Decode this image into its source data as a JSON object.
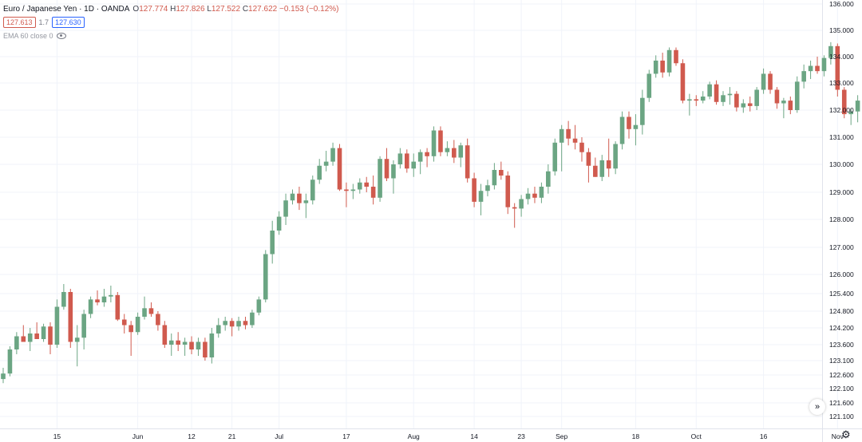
{
  "legend": {
    "symbol_title": "Euro / Japanese Yen · 1D · OANDA",
    "ohlc": [
      {
        "k": "O",
        "v": "127.774"
      },
      {
        "k": "H",
        "v": "127.826"
      },
      {
        "k": "L",
        "v": "127.522"
      },
      {
        "k": "C",
        "v": "127.622"
      }
    ],
    "change": "−0.153 (−0.12%)",
    "bid": "127.613",
    "spread": "1.7",
    "ask": "127.630",
    "indicator": "EMA 60 close 0"
  },
  "colors": {
    "up": "#6ba583",
    "down": "#d05a4e",
    "grid": "#f0f3fa",
    "axis_text": "#131722"
  },
  "icons": [
    "eye-icon",
    "scroll-right-icon",
    "gear-icon"
  ],
  "chart_data": {
    "type": "candlestick",
    "y_axis": {
      "ticks": [
        {
          "label": "136.000",
          "value": 136.0
        },
        {
          "label": "135.000",
          "value": 135.0
        },
        {
          "label": "134.000",
          "value": 134.0
        },
        {
          "label": "133.000",
          "value": 133.0
        },
        {
          "label": "132.000",
          "value": 132.0
        },
        {
          "label": "131.000",
          "value": 131.0
        },
        {
          "label": "130.000",
          "value": 130.0
        },
        {
          "label": "129.000",
          "value": 129.0
        },
        {
          "label": "128.000",
          "value": 128.0
        },
        {
          "label": "127.000",
          "value": 127.0
        },
        {
          "label": "126.000",
          "value": 126.0
        },
        {
          "label": "125.400",
          "value": 125.4
        },
        {
          "label": "124.800",
          "value": 124.8
        },
        {
          "label": "124.200",
          "value": 124.2
        },
        {
          "label": "123.600",
          "value": 123.6
        },
        {
          "label": "123.100",
          "value": 123.1
        },
        {
          "label": "122.600",
          "value": 122.6
        },
        {
          "label": "122.100",
          "value": 122.1
        },
        {
          "label": "121.600",
          "value": 121.6
        },
        {
          "label": "121.100",
          "value": 121.1
        }
      ]
    },
    "x_axis": {
      "ticks": [
        {
          "label": "15",
          "index": 8
        },
        {
          "label": "Jun",
          "index": 20
        },
        {
          "label": "12",
          "index": 28
        },
        {
          "label": "21",
          "index": 34
        },
        {
          "label": "Jul",
          "index": 41
        },
        {
          "label": "17",
          "index": 51
        },
        {
          "label": "Aug",
          "index": 61
        },
        {
          "label": "14",
          "index": 70
        },
        {
          "label": "23",
          "index": 77
        },
        {
          "label": "Sep",
          "index": 83
        },
        {
          "label": "18",
          "index": 94
        },
        {
          "label": "Oct",
          "index": 103
        },
        {
          "label": "16",
          "index": 113
        },
        {
          "label": "Nov",
          "index": 124
        }
      ]
    },
    "grid": true,
    "candles": [
      {
        "o": 122.45,
        "h": 122.85,
        "l": 122.3,
        "c": 122.65
      },
      {
        "o": 122.65,
        "h": 123.55,
        "l": 122.55,
        "c": 123.45
      },
      {
        "o": 123.45,
        "h": 124.05,
        "l": 123.3,
        "c": 123.9
      },
      {
        "o": 123.9,
        "h": 124.3,
        "l": 123.75,
        "c": 123.7
      },
      {
        "o": 123.7,
        "h": 124.2,
        "l": 123.4,
        "c": 124.0
      },
      {
        "o": 124.0,
        "h": 124.4,
        "l": 123.85,
        "c": 123.8
      },
      {
        "o": 123.8,
        "h": 124.35,
        "l": 123.7,
        "c": 124.25
      },
      {
        "o": 124.25,
        "h": 124.4,
        "l": 123.3,
        "c": 123.6
      },
      {
        "o": 123.6,
        "h": 125.2,
        "l": 123.5,
        "c": 124.95
      },
      {
        "o": 124.95,
        "h": 125.7,
        "l": 124.85,
        "c": 125.45
      },
      {
        "o": 125.45,
        "h": 125.55,
        "l": 123.5,
        "c": 123.7
      },
      {
        "o": 123.7,
        "h": 124.3,
        "l": 122.9,
        "c": 123.85
      },
      {
        "o": 123.85,
        "h": 124.85,
        "l": 123.45,
        "c": 124.7
      },
      {
        "o": 124.7,
        "h": 125.3,
        "l": 124.55,
        "c": 125.2
      },
      {
        "o": 125.2,
        "h": 125.5,
        "l": 125.0,
        "c": 125.1
      },
      {
        "o": 125.1,
        "h": 125.55,
        "l": 124.95,
        "c": 125.3
      },
      {
        "o": 125.3,
        "h": 125.65,
        "l": 125.1,
        "c": 125.35
      },
      {
        "o": 125.35,
        "h": 125.45,
        "l": 124.45,
        "c": 124.5
      },
      {
        "o": 124.5,
        "h": 124.7,
        "l": 124.0,
        "c": 124.3
      },
      {
        "o": 124.3,
        "h": 124.45,
        "l": 123.25,
        "c": 124.05
      },
      {
        "o": 124.05,
        "h": 124.75,
        "l": 123.95,
        "c": 124.6
      },
      {
        "o": 124.6,
        "h": 125.3,
        "l": 124.5,
        "c": 124.9
      },
      {
        "o": 124.9,
        "h": 125.1,
        "l": 124.6,
        "c": 124.7
      },
      {
        "o": 124.7,
        "h": 124.8,
        "l": 124.1,
        "c": 124.3
      },
      {
        "o": 124.3,
        "h": 124.45,
        "l": 123.5,
        "c": 123.6
      },
      {
        "o": 123.6,
        "h": 124.0,
        "l": 123.25,
        "c": 123.75
      },
      {
        "o": 123.75,
        "h": 124.05,
        "l": 123.4,
        "c": 123.6
      },
      {
        "o": 123.6,
        "h": 123.85,
        "l": 123.25,
        "c": 123.7
      },
      {
        "o": 123.7,
        "h": 123.9,
        "l": 123.3,
        "c": 123.45
      },
      {
        "o": 123.45,
        "h": 123.85,
        "l": 123.25,
        "c": 123.7
      },
      {
        "o": 123.7,
        "h": 123.85,
        "l": 123.1,
        "c": 123.2
      },
      {
        "o": 123.2,
        "h": 124.2,
        "l": 123.0,
        "c": 124.0
      },
      {
        "o": 124.0,
        "h": 124.55,
        "l": 123.85,
        "c": 124.3
      },
      {
        "o": 124.3,
        "h": 124.6,
        "l": 124.1,
        "c": 124.45
      },
      {
        "o": 124.45,
        "h": 124.55,
        "l": 123.9,
        "c": 124.25
      },
      {
        "o": 124.25,
        "h": 124.6,
        "l": 124.1,
        "c": 124.45
      },
      {
        "o": 124.45,
        "h": 124.6,
        "l": 124.15,
        "c": 124.3
      },
      {
        "o": 124.3,
        "h": 124.85,
        "l": 124.2,
        "c": 124.75
      },
      {
        "o": 124.75,
        "h": 125.3,
        "l": 124.65,
        "c": 125.2
      },
      {
        "o": 125.2,
        "h": 126.9,
        "l": 125.1,
        "c": 126.75
      },
      {
        "o": 126.75,
        "h": 127.95,
        "l": 126.4,
        "c": 127.6
      },
      {
        "o": 127.6,
        "h": 128.3,
        "l": 127.45,
        "c": 128.1
      },
      {
        "o": 128.1,
        "h": 128.95,
        "l": 127.8,
        "c": 128.7
      },
      {
        "o": 128.7,
        "h": 129.1,
        "l": 128.55,
        "c": 128.95
      },
      {
        "o": 128.95,
        "h": 129.2,
        "l": 128.35,
        "c": 128.6
      },
      {
        "o": 128.6,
        "h": 128.95,
        "l": 128.05,
        "c": 128.7
      },
      {
        "o": 128.7,
        "h": 129.6,
        "l": 128.55,
        "c": 129.45
      },
      {
        "o": 129.45,
        "h": 130.2,
        "l": 129.3,
        "c": 129.95
      },
      {
        "o": 129.95,
        "h": 130.5,
        "l": 129.75,
        "c": 130.1
      },
      {
        "o": 130.1,
        "h": 130.8,
        "l": 129.95,
        "c": 130.6
      },
      {
        "o": 130.6,
        "h": 130.75,
        "l": 129.05,
        "c": 129.1
      },
      {
        "o": 129.1,
        "h": 129.35,
        "l": 128.45,
        "c": 129.05
      },
      {
        "o": 129.05,
        "h": 129.3,
        "l": 128.75,
        "c": 129.1
      },
      {
        "o": 129.1,
        "h": 129.5,
        "l": 128.95,
        "c": 129.35
      },
      {
        "o": 129.35,
        "h": 129.55,
        "l": 129.0,
        "c": 129.2
      },
      {
        "o": 129.2,
        "h": 129.6,
        "l": 128.55,
        "c": 128.8
      },
      {
        "o": 128.8,
        "h": 130.3,
        "l": 128.65,
        "c": 130.2
      },
      {
        "o": 130.2,
        "h": 130.6,
        "l": 129.4,
        "c": 129.5
      },
      {
        "o": 129.5,
        "h": 130.15,
        "l": 128.95,
        "c": 130.0
      },
      {
        "o": 130.0,
        "h": 130.6,
        "l": 129.85,
        "c": 130.4
      },
      {
        "o": 130.4,
        "h": 130.55,
        "l": 129.7,
        "c": 129.85
      },
      {
        "o": 129.85,
        "h": 130.4,
        "l": 129.55,
        "c": 130.1
      },
      {
        "o": 130.1,
        "h": 130.55,
        "l": 129.65,
        "c": 130.45
      },
      {
        "o": 130.45,
        "h": 130.6,
        "l": 129.9,
        "c": 130.3
      },
      {
        "o": 130.3,
        "h": 131.4,
        "l": 130.1,
        "c": 131.25
      },
      {
        "o": 131.25,
        "h": 131.4,
        "l": 130.3,
        "c": 130.45
      },
      {
        "o": 130.45,
        "h": 130.85,
        "l": 130.3,
        "c": 130.6
      },
      {
        "o": 130.6,
        "h": 130.9,
        "l": 130.05,
        "c": 130.25
      },
      {
        "o": 130.25,
        "h": 130.8,
        "l": 129.9,
        "c": 130.7
      },
      {
        "o": 130.7,
        "h": 130.95,
        "l": 129.35,
        "c": 129.5
      },
      {
        "o": 129.5,
        "h": 129.7,
        "l": 128.45,
        "c": 128.65
      },
      {
        "o": 128.65,
        "h": 129.3,
        "l": 128.15,
        "c": 129.05
      },
      {
        "o": 129.05,
        "h": 129.45,
        "l": 128.85,
        "c": 129.25
      },
      {
        "o": 129.25,
        "h": 130.05,
        "l": 129.1,
        "c": 129.8
      },
      {
        "o": 129.8,
        "h": 130.1,
        "l": 129.45,
        "c": 129.6
      },
      {
        "o": 129.6,
        "h": 129.75,
        "l": 128.2,
        "c": 128.45
      },
      {
        "o": 128.45,
        "h": 128.6,
        "l": 127.7,
        "c": 128.4
      },
      {
        "o": 128.4,
        "h": 128.9,
        "l": 128.1,
        "c": 128.75
      },
      {
        "o": 128.75,
        "h": 129.15,
        "l": 128.55,
        "c": 128.95
      },
      {
        "o": 128.95,
        "h": 129.2,
        "l": 128.6,
        "c": 128.8
      },
      {
        "o": 128.8,
        "h": 129.35,
        "l": 128.6,
        "c": 129.2
      },
      {
        "o": 129.2,
        "h": 130.0,
        "l": 128.95,
        "c": 129.75
      },
      {
        "o": 129.75,
        "h": 130.95,
        "l": 129.6,
        "c": 130.8
      },
      {
        "o": 130.8,
        "h": 131.45,
        "l": 129.75,
        "c": 131.3
      },
      {
        "o": 131.3,
        "h": 131.6,
        "l": 130.7,
        "c": 130.95
      },
      {
        "o": 130.95,
        "h": 131.45,
        "l": 130.55,
        "c": 130.8
      },
      {
        "o": 130.8,
        "h": 131.0,
        "l": 130.1,
        "c": 130.45
      },
      {
        "o": 130.45,
        "h": 130.6,
        "l": 129.35,
        "c": 129.95
      },
      {
        "o": 129.95,
        "h": 130.25,
        "l": 129.55,
        "c": 129.55
      },
      {
        "o": 129.55,
        "h": 130.35,
        "l": 129.4,
        "c": 130.15
      },
      {
        "o": 130.15,
        "h": 130.95,
        "l": 129.55,
        "c": 129.85
      },
      {
        "o": 129.85,
        "h": 130.85,
        "l": 129.65,
        "c": 130.75
      },
      {
        "o": 130.75,
        "h": 131.95,
        "l": 130.55,
        "c": 131.75
      },
      {
        "o": 131.75,
        "h": 131.95,
        "l": 130.95,
        "c": 131.3
      },
      {
        "o": 131.3,
        "h": 131.85,
        "l": 130.7,
        "c": 131.45
      },
      {
        "o": 131.45,
        "h": 132.75,
        "l": 131.1,
        "c": 132.45
      },
      {
        "o": 132.45,
        "h": 133.5,
        "l": 132.3,
        "c": 133.35
      },
      {
        "o": 133.35,
        "h": 134.05,
        "l": 133.2,
        "c": 133.85
      },
      {
        "o": 133.85,
        "h": 134.15,
        "l": 133.2,
        "c": 133.4
      },
      {
        "o": 133.4,
        "h": 134.35,
        "l": 133.25,
        "c": 134.25
      },
      {
        "o": 134.25,
        "h": 134.35,
        "l": 133.65,
        "c": 133.75
      },
      {
        "o": 133.75,
        "h": 133.9,
        "l": 132.25,
        "c": 132.35
      },
      {
        "o": 132.35,
        "h": 132.6,
        "l": 131.8,
        "c": 132.4
      },
      {
        "o": 132.4,
        "h": 132.55,
        "l": 132.15,
        "c": 132.35
      },
      {
        "o": 132.35,
        "h": 132.7,
        "l": 132.25,
        "c": 132.5
      },
      {
        "o": 132.5,
        "h": 133.05,
        "l": 132.4,
        "c": 132.95
      },
      {
        "o": 132.95,
        "h": 133.1,
        "l": 132.2,
        "c": 132.3
      },
      {
        "o": 132.3,
        "h": 132.7,
        "l": 132.15,
        "c": 132.55
      },
      {
        "o": 132.55,
        "h": 132.85,
        "l": 132.2,
        "c": 132.6
      },
      {
        "o": 132.6,
        "h": 132.7,
        "l": 131.95,
        "c": 132.1
      },
      {
        "o": 132.1,
        "h": 132.4,
        "l": 131.9,
        "c": 132.25
      },
      {
        "o": 132.25,
        "h": 132.5,
        "l": 131.95,
        "c": 132.15
      },
      {
        "o": 132.15,
        "h": 132.85,
        "l": 132.0,
        "c": 132.75
      },
      {
        "o": 132.75,
        "h": 133.55,
        "l": 132.6,
        "c": 133.35
      },
      {
        "o": 133.35,
        "h": 133.45,
        "l": 132.6,
        "c": 132.75
      },
      {
        "o": 132.75,
        "h": 132.85,
        "l": 132.05,
        "c": 132.25
      },
      {
        "o": 132.25,
        "h": 132.45,
        "l": 131.7,
        "c": 132.35
      },
      {
        "o": 132.35,
        "h": 132.5,
        "l": 131.85,
        "c": 132.0
      },
      {
        "o": 132.0,
        "h": 133.25,
        "l": 131.9,
        "c": 133.05
      },
      {
        "o": 133.05,
        "h": 133.7,
        "l": 132.8,
        "c": 133.45
      },
      {
        "o": 133.45,
        "h": 133.85,
        "l": 133.15,
        "c": 133.65
      },
      {
        "o": 133.65,
        "h": 134.0,
        "l": 133.35,
        "c": 133.45
      },
      {
        "o": 133.45,
        "h": 134.05,
        "l": 133.25,
        "c": 133.95
      },
      {
        "o": 133.95,
        "h": 134.55,
        "l": 133.7,
        "c": 134.4
      },
      {
        "o": 134.4,
        "h": 134.5,
        "l": 132.5,
        "c": 132.75
      },
      {
        "o": 132.75,
        "h": 132.85,
        "l": 131.7,
        "c": 131.85
      },
      {
        "o": 131.85,
        "h": 132.05,
        "l": 131.45,
        "c": 131.95
      },
      {
        "o": 131.95,
        "h": 132.55,
        "l": 131.55,
        "c": 132.35
      },
      {
        "o": 132.35,
        "h": 132.85,
        "l": 132.1,
        "c": 132.75
      },
      {
        "o": 132.75,
        "h": 133.15,
        "l": 132.55,
        "c": 133.0
      },
      {
        "o": 133.0,
        "h": 133.1,
        "l": 132.35,
        "c": 132.45
      }
    ]
  }
}
